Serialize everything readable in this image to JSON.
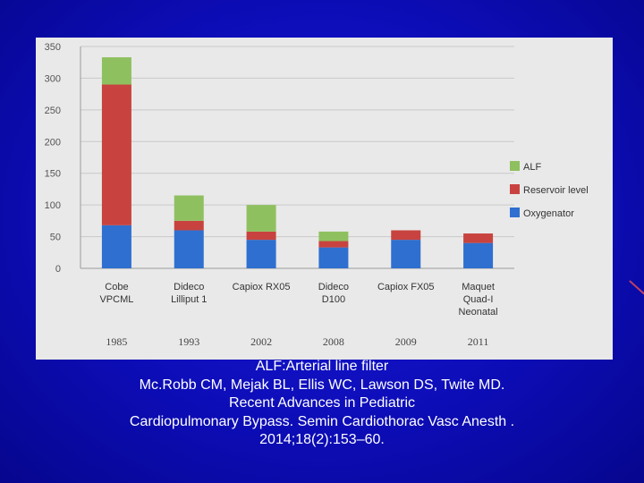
{
  "colors": {
    "ALF": "#8fc060",
    "Reservoir level": "#c8433f",
    "Oxygenator": "#2f6fd0"
  },
  "chart_data": {
    "type": "bar",
    "stacked": true,
    "categories": [
      [
        "Cobe",
        "VPCML"
      ],
      [
        "Dideco",
        "Lilliput 1"
      ],
      [
        "Capiox RX05"
      ],
      [
        "Dideco",
        "D100"
      ],
      [
        "Capiox FX05"
      ],
      [
        "Maquet",
        "Quad-I",
        "Neonatal"
      ]
    ],
    "years": [
      "1985",
      "1993",
      "2002",
      "2008",
      "2009",
      "2011"
    ],
    "series": [
      {
        "name": "Oxygenator",
        "values": [
          68,
          60,
          45,
          33,
          45,
          40
        ]
      },
      {
        "name": "Reservoir level",
        "values": [
          222,
          15,
          13,
          10,
          15,
          15
        ]
      },
      {
        "name": "ALF",
        "values": [
          43,
          40,
          42,
          15,
          0,
          0
        ]
      }
    ],
    "legend": [
      "ALF",
      "Reservoir level",
      "Oxygenator"
    ],
    "legend_position": "right",
    "yticks": [
      0,
      50,
      100,
      150,
      200,
      250,
      300,
      350
    ],
    "ylim": [
      0,
      350
    ],
    "grid": true,
    "title": "",
    "xlabel": "",
    "ylabel": ""
  },
  "caption": {
    "lines": [
      "ALF:Arterial line filter",
      "Mc.Robb CM, Mejak BL, Ellis WC, Lawson DS, Twite MD.",
      "Recent Advances in Pediatric",
      "Cardiopulmonary Bypass. Semin Cardiothorac Vasc Anesth .",
      "2014;18(2):153–60."
    ]
  }
}
